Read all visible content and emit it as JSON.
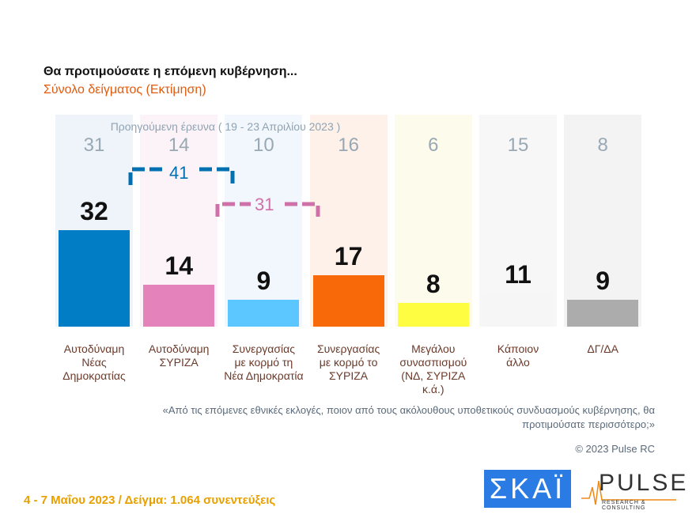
{
  "title": "Θα προτιμούσατε η επόμενη κυβέρνηση...",
  "subtitle": "Σύνολο δείγματος  (Εκτίμηση)",
  "question": "«Από τις επόμενες εθνικές εκλογές, ποιον από τους ακόλουθους υποθετικούς συνδυασμούς κυβέρνησης, θα προτιμούσατε περισσότερο;»",
  "copyright": "© 2023 Pulse RC",
  "footer": "4 - 7  Μαΐου  2023  /  Δείγμα:  1.064 συνεντεύξεις",
  "logos": {
    "skai": "ΣΚΑΪ",
    "pulse": "PULSE",
    "pulse_sub": "RESEARCH & CONSULTING"
  },
  "chart_data": {
    "type": "bar",
    "categories": [
      "Αυτοδύναμη Νέας Δημοκρατίας",
      "Αυτοδύναμη ΣΥΡΙΖΑ",
      "Συνεργασίας με κορμό τη Νέα Δημοκρατία",
      "Συνεργασίας με κορμό το ΣΥΡΙΖΑ",
      "Μεγάλου συνασπισμού (ΝΔ, ΣΥΡΙΖΑ κ.ά.)",
      "Κάποιον άλλο",
      "ΔΓ/ΔΑ"
    ],
    "category_lines": [
      [
        "Αυτοδύναμη",
        "Νέας",
        "Δημοκρατίας"
      ],
      [
        "Αυτοδύναμη",
        "ΣΥΡΙΖΑ"
      ],
      [
        "Συνεργασίας",
        "με κορμό τη",
        "Νέα Δημοκρατία"
      ],
      [
        "Συνεργασίας",
        "με κορμό το",
        "ΣΥΡΙΖΑ"
      ],
      [
        "Μεγάλου",
        "συνασπισμού",
        "(ΝΔ, ΣΥΡΙΖΑ κ.ά.)"
      ],
      [
        "Κάποιον",
        "άλλο"
      ],
      [
        "ΔΓ/ΔΑ"
      ]
    ],
    "values": [
      32,
      14,
      9,
      17,
      8,
      11,
      9
    ],
    "previous": {
      "label": "Προηγούμενη έρευνα  ( 19 - 23 Απριλίου  2023 )",
      "values": [
        31,
        14,
        10,
        16,
        6,
        15,
        8
      ]
    },
    "brackets": [
      {
        "label": "41",
        "color": "#0070b0"
      },
      {
        "label": "31",
        "color": "#d070a8"
      }
    ],
    "colors": [
      "#0070b0",
      "#cc74a8",
      "#52b2e8",
      "#dd5f08",
      "#ece23a",
      "#dcdcdc",
      "#9a9a9a"
    ],
    "bg_colors": [
      "#eef4f9",
      "#fbf3f8",
      "#f1f7fc",
      "#fdf1e9",
      "#fdfcec",
      "#f7f7f7",
      "#f3f3f3"
    ],
    "ylim": [
      0,
      35
    ]
  }
}
